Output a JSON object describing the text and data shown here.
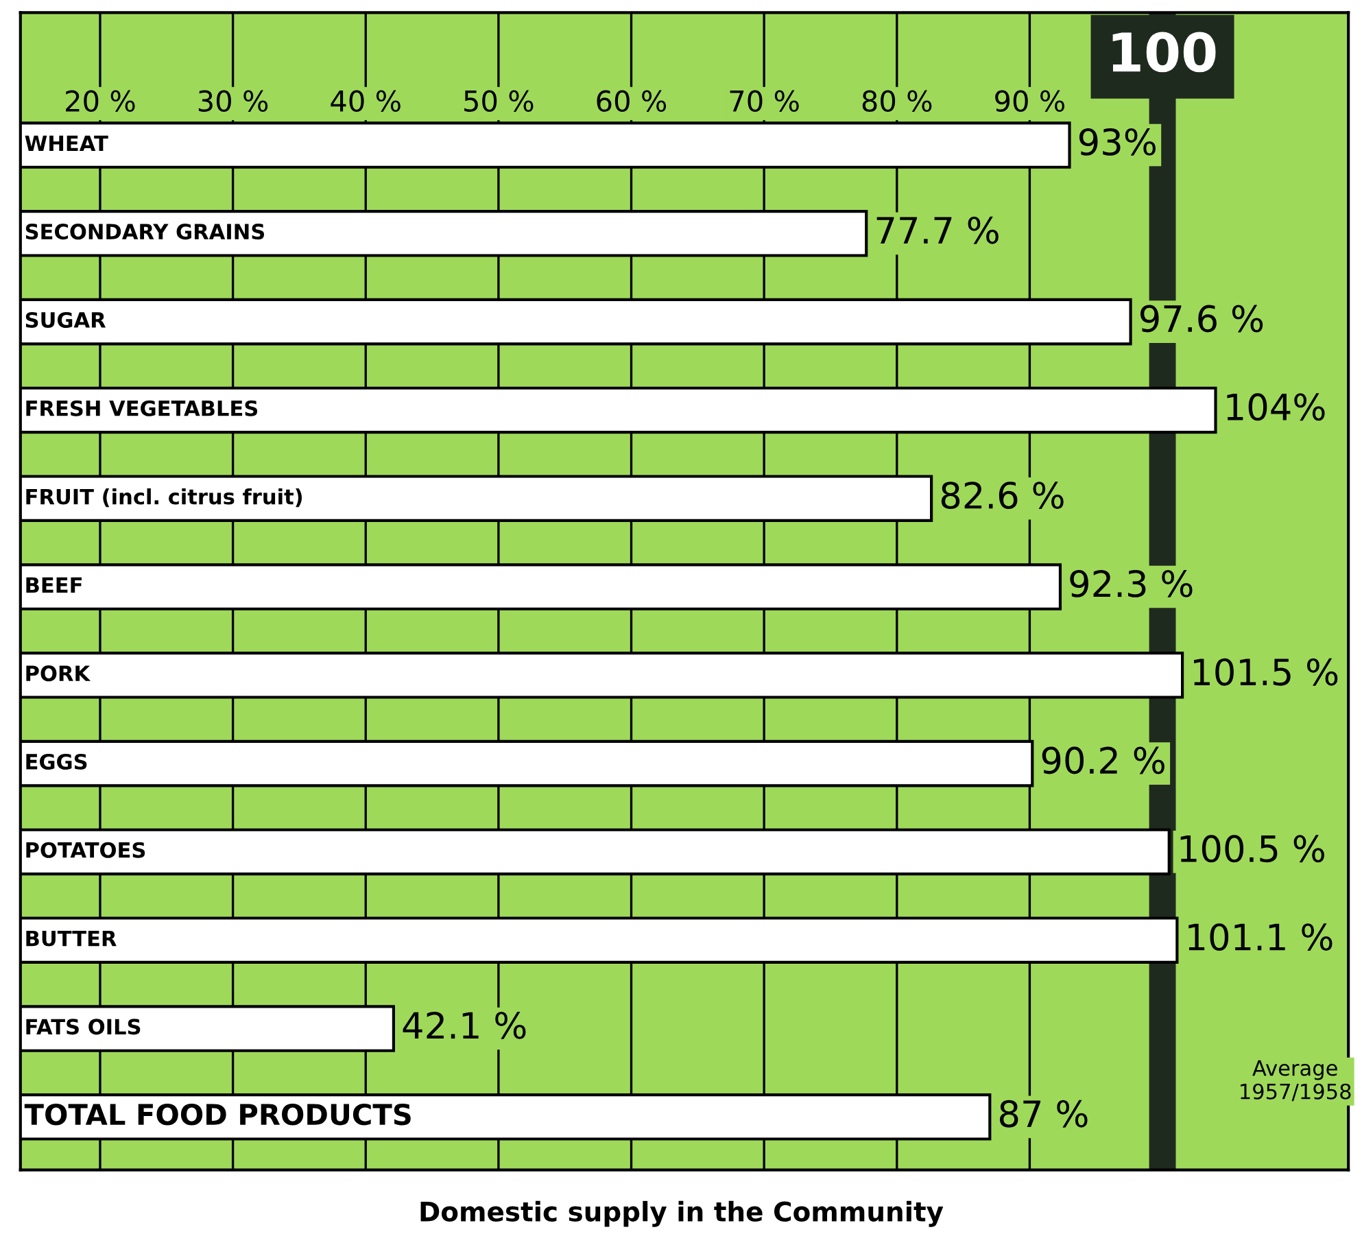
{
  "chart_data": {
    "type": "bar",
    "orientation": "horizontal",
    "title": "Domestic supply in the Community",
    "categories": [
      "WHEAT",
      "SECONDARY GRAINS",
      "SUGAR",
      "FRESH VEGETABLES",
      "FRUIT (incl. citrus fruit)",
      "BEEF",
      "PORK",
      "EGGS",
      "POTATOES",
      "BUTTER",
      "FATS OILS",
      "TOTAL FOOD PRODUCTS"
    ],
    "values": [
      93,
      77.7,
      97.6,
      104,
      82.6,
      92.3,
      101.5,
      90.2,
      100.5,
      101.1,
      42.1,
      87
    ],
    "value_labels": [
      "93%",
      "77.7 %",
      "97.6 %",
      "104%",
      "82.6 %",
      "92.3 %",
      "101.5 %",
      "90.2 %",
      "100.5 %",
      "101.1 %",
      "42.1 %",
      "87 %"
    ],
    "color": "#ffffff",
    "xlim": [
      14,
      114
    ],
    "xticks": [
      {
        "value": 20,
        "label": "20 %"
      },
      {
        "value": 30,
        "label": "30 %"
      },
      {
        "value": 40,
        "label": "40 %"
      },
      {
        "value": 50,
        "label": "50 %"
      },
      {
        "value": 60,
        "label": "60 %"
      },
      {
        "value": 70,
        "label": "70 %"
      },
      {
        "value": 80,
        "label": "80 %"
      },
      {
        "value": 90,
        "label": "90 %"
      }
    ],
    "grid": "x",
    "ref_lines": [
      {
        "axis": "x",
        "value": 100,
        "label": "100",
        "color": "#1f2a1f"
      }
    ],
    "annotations": [
      "Average\n1957/1958"
    ]
  }
}
